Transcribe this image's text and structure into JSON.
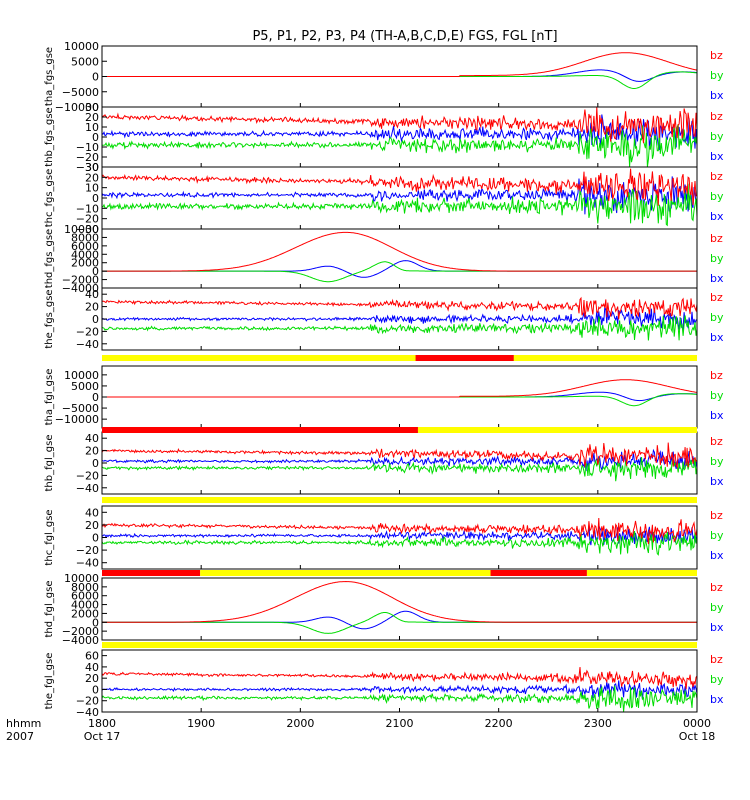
{
  "chart_data": {
    "type": "line",
    "title": "P5, P1, P2, P3, P4 (TH-A,B,C,D,E) FGS, FGL [nT]",
    "time_label": "hhmm",
    "year_label": "2007",
    "x_ticks": [
      "1800",
      "1900",
      "2000",
      "2100",
      "2200",
      "2300",
      "0000"
    ],
    "date_labels": [
      "Oct 17",
      "Oct 18"
    ],
    "xlim": [
      "1800",
      "0000"
    ],
    "colors": {
      "bz": "#ff0000",
      "by": "#00dd00",
      "bx": "#0000ff",
      "bar_yellow": "#ffff00",
      "bar_red": "#ff0000"
    },
    "panels": [
      {
        "ylabel": "tha_fgs_gse",
        "ylim": [
          -10000,
          10000
        ],
        "yticks": [
          "10000",
          "5000",
          "0",
          "−5000",
          "−10000"
        ],
        "legend": [
          "bz",
          "by",
          "bx"
        ]
      },
      {
        "ylabel": "thb_fgs_gse",
        "ylim": [
          -30,
          30
        ],
        "yticks": [
          "30",
          "20",
          "10",
          "0",
          "−10",
          "−20",
          "−30"
        ],
        "legend": [
          "bz",
          "by",
          "bx"
        ]
      },
      {
        "ylabel": "thc_fgs_gse",
        "ylim": [
          -30,
          30
        ],
        "yticks": [
          "30",
          "20",
          "10",
          "0",
          "−10",
          "−20",
          "−30"
        ],
        "legend": [
          "bz",
          "by",
          "bx"
        ]
      },
      {
        "ylabel": "thd_fgs_gse",
        "ylim": [
          -4000,
          10000
        ],
        "yticks": [
          "10000",
          "8000",
          "6000",
          "4000",
          "2000",
          "0",
          "−2000",
          "−4000"
        ],
        "legend": [
          "bz",
          "by",
          "bx"
        ]
      },
      {
        "ylabel": "the_fgs_gse",
        "ylim": [
          -50,
          50
        ],
        "yticks": [
          "40",
          "20",
          "0",
          "−20",
          "−40"
        ],
        "legend": [
          "bz",
          "by",
          "bx"
        ]
      },
      {
        "ylabel": "tha_fgl_gse",
        "ylim": [
          -14000,
          14000
        ],
        "yticks": [
          "10000",
          "5000",
          "0",
          "−5000",
          "−10000"
        ],
        "legend": [
          "bz",
          "by",
          "bx"
        ]
      },
      {
        "ylabel": "thb_fgl_gse",
        "ylim": [
          -50,
          50
        ],
        "yticks": [
          "40",
          "20",
          "0",
          "−20",
          "−40"
        ],
        "legend": [
          "bz",
          "by",
          "bx"
        ]
      },
      {
        "ylabel": "thc_fgl_gse",
        "ylim": [
          -50,
          50
        ],
        "yticks": [
          "40",
          "20",
          "0",
          "−20",
          "−40"
        ],
        "legend": [
          "bz",
          "by",
          "bx"
        ]
      },
      {
        "ylabel": "thd_fgl_gse",
        "ylim": [
          -4000,
          10000
        ],
        "yticks": [
          "10000",
          "8000",
          "6000",
          "4000",
          "2000",
          "0",
          "−2000",
          "−4000"
        ],
        "legend": [
          "bz",
          "by",
          "bx"
        ]
      },
      {
        "ylabel": "the_fgl_gse",
        "ylim": [
          -40,
          70
        ],
        "yticks": [
          "60",
          "40",
          "20",
          "0",
          "−20",
          "−40"
        ],
        "legend": [
          "bz",
          "by",
          "bx"
        ]
      }
    ]
  }
}
